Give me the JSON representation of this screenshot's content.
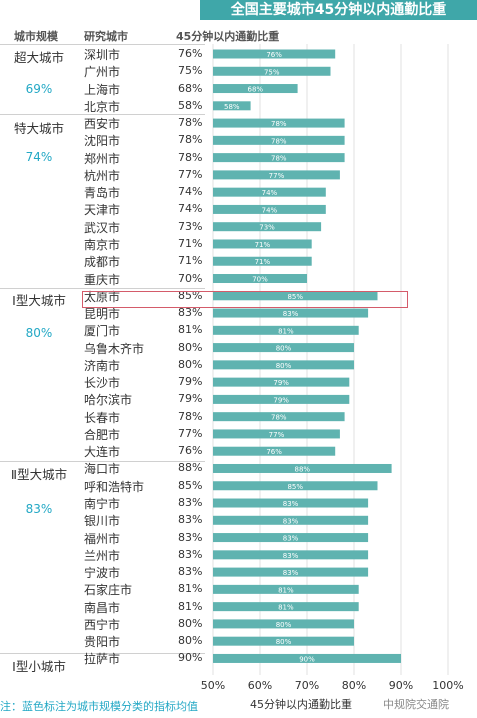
{
  "headers": {
    "tier": "城市规模",
    "city": "研究城市",
    "metric": "45分钟以内通勤比重"
  },
  "title": "全国主要城市45分钟以内通勤比重",
  "note": "注：蓝色标注为城市规模分类的指标均值",
  "watermark": "中规院交通院",
  "colors": {
    "bar": "#5fb3b0",
    "title_bg": "#3fa7a9",
    "avg": "#23a8c5",
    "highlight": "#d45b6a"
  },
  "tiers": [
    {
      "name": "超大城市",
      "avg": "69%"
    },
    {
      "name": "特大城市",
      "avg": "74%"
    },
    {
      "name": "Ⅰ型大城市",
      "avg": "80%"
    },
    {
      "name": "Ⅱ型大城市",
      "avg": "83%"
    },
    {
      "name": "Ⅰ型小城市",
      "avg": ""
    }
  ],
  "chart_data": {
    "type": "bar",
    "orientation": "horizontal",
    "title": "全国主要城市45分钟以内通勤比重",
    "xlabel": "45分钟以内通勤比重",
    "xlim": [
      50,
      100
    ],
    "xticks": [
      "50%",
      "60%",
      "70%",
      "80%",
      "90%",
      "100%"
    ],
    "highlight": "太原市",
    "rows": [
      {
        "tier": "超大城市",
        "city": "深圳市",
        "value": 76,
        "label": "76%"
      },
      {
        "tier": "超大城市",
        "city": "广州市",
        "value": 75,
        "label": "75%"
      },
      {
        "tier": "超大城市",
        "city": "上海市",
        "value": 68,
        "label": "68%"
      },
      {
        "tier": "超大城市",
        "city": "北京市",
        "value": 58,
        "label": "58%"
      },
      {
        "tier": "特大城市",
        "city": "西安市",
        "value": 78,
        "label": "78%"
      },
      {
        "tier": "特大城市",
        "city": "沈阳市",
        "value": 78,
        "label": "78%"
      },
      {
        "tier": "特大城市",
        "city": "郑州市",
        "value": 78,
        "label": "78%"
      },
      {
        "tier": "特大城市",
        "city": "杭州市",
        "value": 77,
        "label": "77%"
      },
      {
        "tier": "特大城市",
        "city": "青岛市",
        "value": 74,
        "label": "74%"
      },
      {
        "tier": "特大城市",
        "city": "天津市",
        "value": 74,
        "label": "74%"
      },
      {
        "tier": "特大城市",
        "city": "武汉市",
        "value": 73,
        "label": "73%"
      },
      {
        "tier": "特大城市",
        "city": "南京市",
        "value": 71,
        "label": "71%"
      },
      {
        "tier": "特大城市",
        "city": "成都市",
        "value": 71,
        "label": "71%"
      },
      {
        "tier": "特大城市",
        "city": "重庆市",
        "value": 70,
        "label": "70%"
      },
      {
        "tier": "Ⅰ型大城市",
        "city": "太原市",
        "value": 85,
        "label": "85%"
      },
      {
        "tier": "Ⅰ型大城市",
        "city": "昆明市",
        "value": 83,
        "label": "83%"
      },
      {
        "tier": "Ⅰ型大城市",
        "city": "厦门市",
        "value": 81,
        "label": "81%"
      },
      {
        "tier": "Ⅰ型大城市",
        "city": "乌鲁木齐市",
        "value": 80,
        "label": "80%"
      },
      {
        "tier": "Ⅰ型大城市",
        "city": "济南市",
        "value": 80,
        "label": "80%"
      },
      {
        "tier": "Ⅰ型大城市",
        "city": "长沙市",
        "value": 79,
        "label": "79%"
      },
      {
        "tier": "Ⅰ型大城市",
        "city": "哈尔滨市",
        "value": 79,
        "label": "79%"
      },
      {
        "tier": "Ⅰ型大城市",
        "city": "长春市",
        "value": 78,
        "label": "78%"
      },
      {
        "tier": "Ⅰ型大城市",
        "city": "合肥市",
        "value": 77,
        "label": "77%"
      },
      {
        "tier": "Ⅰ型大城市",
        "city": "大连市",
        "value": 76,
        "label": "76%"
      },
      {
        "tier": "Ⅱ型大城市",
        "city": "海口市",
        "value": 88,
        "label": "88%"
      },
      {
        "tier": "Ⅱ型大城市",
        "city": "呼和浩特市",
        "value": 85,
        "label": "85%"
      },
      {
        "tier": "Ⅱ型大城市",
        "city": "南宁市",
        "value": 83,
        "label": "83%"
      },
      {
        "tier": "Ⅱ型大城市",
        "city": "银川市",
        "value": 83,
        "label": "83%"
      },
      {
        "tier": "Ⅱ型大城市",
        "city": "福州市",
        "value": 83,
        "label": "83%"
      },
      {
        "tier": "Ⅱ型大城市",
        "city": "兰州市",
        "value": 83,
        "label": "83%"
      },
      {
        "tier": "Ⅱ型大城市",
        "city": "宁波市",
        "value": 83,
        "label": "83%"
      },
      {
        "tier": "Ⅱ型大城市",
        "city": "石家庄市",
        "value": 81,
        "label": "81%"
      },
      {
        "tier": "Ⅱ型大城市",
        "city": "南昌市",
        "value": 81,
        "label": "81%"
      },
      {
        "tier": "Ⅱ型大城市",
        "city": "西宁市",
        "value": 80,
        "label": "80%"
      },
      {
        "tier": "Ⅱ型大城市",
        "city": "贵阳市",
        "value": 80,
        "label": "80%"
      },
      {
        "tier": "Ⅰ型小城市",
        "city": "拉萨市",
        "value": 90,
        "label": "90%"
      }
    ]
  }
}
